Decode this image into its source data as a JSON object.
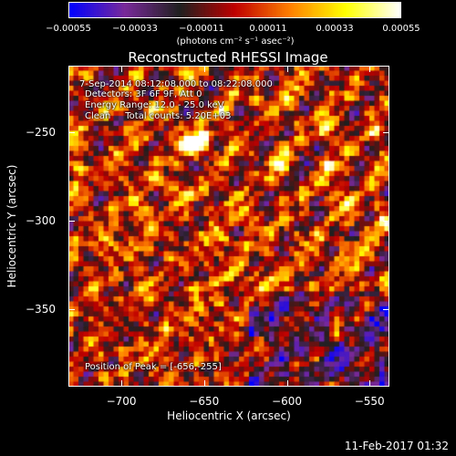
{
  "chart_data": {
    "type": "heatmap",
    "title": "Reconstructed RHESSI Image",
    "xlabel": "Heliocentric X (arcsec)",
    "ylabel": "Heliocentric Y (arcsec)",
    "xlim": [
      -732,
      -538
    ],
    "ylim": [
      -394,
      -212
    ],
    "x_ticks": [
      "−700",
      "−650",
      "−600",
      "−550"
    ],
    "x_tick_values": [
      -700,
      -650,
      -600,
      -550
    ],
    "y_ticks": [
      "−250",
      "−300",
      "−350"
    ],
    "y_tick_values": [
      -250,
      -300,
      -350
    ],
    "colorbar": {
      "ticks": [
        "−0.00055",
        "−0.00033",
        "−0.00011",
        "0.00011",
        "0.00033",
        "0.00055"
      ],
      "tick_values": [
        -0.00055,
        -0.00033,
        -0.00011,
        0.00011,
        0.00033,
        0.00055
      ],
      "unit_label": "(photons cm⁻² s⁻¹ asec⁻²)",
      "range": [
        -0.00055,
        0.00055
      ]
    },
    "annotations": {
      "time_range": "7-Sep-2014 08:12:08.000 to 08:22:08.000",
      "detectors": "Detectors: 3F 6F 9F, Att 0",
      "energy": "Energy Range: 12.0 - 25.0 keV",
      "method": "Clean     Total counts: 5.20E+03",
      "peak": "Position of Peak = [-656,-255]"
    },
    "peak": [
      -656,
      -255
    ],
    "grid": false
  },
  "footer": {
    "timestamp": "11-Feb-2017 01:32"
  },
  "colors": {
    "background": "#000000",
    "colormap": [
      "#0000ff",
      "#7a2a9a",
      "#202020",
      "#c00000",
      "#ff8000",
      "#ffff00",
      "#ffffff"
    ]
  }
}
